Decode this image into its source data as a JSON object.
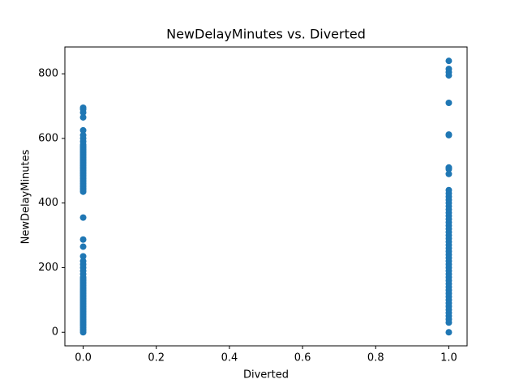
{
  "chart_data": {
    "type": "scatter",
    "title": "NewDelayMinutes vs. Diverted",
    "x_label": "Diverted",
    "y_label": "NewDelayMinutes",
    "color": "#1f77b4",
    "x": [
      0,
      0,
      0,
      0,
      0,
      0,
      0,
      0,
      0,
      0,
      0,
      0,
      0,
      0,
      0,
      0,
      0,
      0,
      0,
      0,
      0,
      0,
      0,
      0,
      0,
      0,
      0,
      0,
      0,
      0,
      0,
      0,
      0,
      0,
      0,
      0,
      0,
      0,
      0,
      0,
      0,
      0,
      0,
      0,
      0,
      0,
      0,
      0,
      0,
      0,
      0,
      0,
      0,
      0,
      0,
      0,
      0,
      0,
      0,
      0,
      0,
      0,
      0,
      0,
      0,
      0,
      0,
      0,
      0,
      0,
      0,
      0,
      0,
      0,
      0,
      0,
      0,
      0,
      0,
      0,
      0,
      0,
      1,
      1,
      1,
      1,
      1,
      1,
      1,
      1,
      1,
      1,
      1,
      1,
      1,
      1,
      1,
      1,
      1,
      1,
      1,
      1,
      1,
      1,
      1,
      1,
      1,
      1,
      1,
      1,
      1,
      1,
      1,
      1,
      1,
      1,
      1,
      1,
      1,
      1,
      1,
      1,
      1,
      1,
      1,
      1,
      1,
      1,
      1,
      1,
      1,
      1,
      1,
      1,
      1
    ],
    "values": [
      0,
      5,
      10,
      15,
      20,
      25,
      30,
      35,
      40,
      45,
      50,
      55,
      60,
      65,
      70,
      75,
      80,
      85,
      90,
      95,
      100,
      105,
      110,
      115,
      120,
      125,
      130,
      135,
      140,
      145,
      150,
      155,
      160,
      165,
      170,
      180,
      190,
      200,
      210,
      220,
      235,
      265,
      287,
      355,
      435,
      440,
      445,
      450,
      455,
      460,
      465,
      470,
      475,
      480,
      485,
      490,
      495,
      500,
      505,
      510,
      515,
      520,
      525,
      530,
      535,
      540,
      545,
      550,
      555,
      560,
      565,
      570,
      575,
      580,
      590,
      600,
      610,
      625,
      665,
      680,
      690,
      695,
      0,
      30,
      40,
      50,
      60,
      70,
      80,
      90,
      100,
      110,
      120,
      130,
      140,
      150,
      160,
      170,
      180,
      190,
      200,
      210,
      220,
      230,
      240,
      250,
      260,
      270,
      280,
      290,
      300,
      310,
      320,
      330,
      340,
      350,
      360,
      370,
      380,
      390,
      400,
      410,
      420,
      430,
      440,
      490,
      505,
      510,
      610,
      612,
      710,
      795,
      805,
      815,
      840
    ],
    "xlim": [
      -0.05,
      1.05
    ],
    "ylim": [
      -42,
      883
    ],
    "xticks": [
      {
        "value": 0,
        "label": "0.0"
      },
      {
        "value": 0.2,
        "label": "0.2"
      },
      {
        "value": 0.4,
        "label": "0.4"
      },
      {
        "value": 0.6,
        "label": "0.6"
      },
      {
        "value": 0.8,
        "label": "0.8"
      },
      {
        "value": 1,
        "label": "1.0"
      }
    ],
    "yticks": [
      0,
      200,
      400,
      600,
      800
    ],
    "grid": false
  }
}
